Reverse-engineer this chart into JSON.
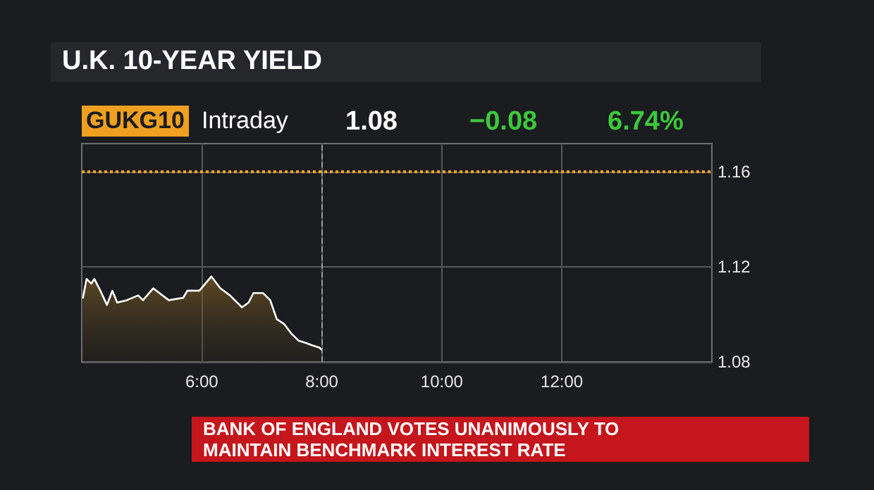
{
  "chart_data": {
    "type": "area",
    "title": "U.K. 10-YEAR YIELD",
    "annotations": [
      "GUKG10",
      "Intraday",
      "1.08",
      "−0.08",
      "6.74%",
      "BANK OF ENGLAND VOTES UNANIMOUSLY TO MAINTAIN BENCHMARK INTEREST RATE"
    ],
    "x": [
      4.02,
      4.08,
      4.16,
      4.21,
      4.31,
      4.42,
      4.51,
      4.59,
      4.75,
      4.94,
      5.02,
      5.19,
      5.45,
      5.69,
      5.76,
      5.96,
      6.16,
      6.31,
      6.47,
      6.67,
      6.78,
      6.86,
      7.02,
      7.14,
      7.25,
      7.37,
      7.49,
      7.61,
      7.73,
      7.84,
      7.96,
      8.0
    ],
    "series": [
      {
        "color": "#ffffff",
        "values": [
          1.107,
          1.115,
          1.113,
          1.115,
          1.11,
          1.104,
          1.11,
          1.105,
          1.106,
          1.108,
          1.106,
          1.111,
          1.106,
          1.107,
          1.11,
          1.11,
          1.116,
          1.111,
          1.108,
          1.103,
          1.105,
          1.109,
          1.109,
          1.106,
          1.098,
          1.096,
          1.092,
          1.089,
          1.088,
          1.087,
          1.086,
          1.085
        ]
      }
    ],
    "xlim": [
      4,
      14.5
    ],
    "xticks": [
      {
        "value": 6,
        "label": "6:00"
      },
      {
        "value": 8,
        "label": "8:00"
      },
      {
        "value": 10,
        "label": "10:00"
      },
      {
        "value": 12,
        "label": "12:00"
      }
    ],
    "ylim": [
      1.08,
      1.172
    ],
    "yticks": [
      1.08,
      1.12,
      1.16
    ],
    "ref_lines": [
      {
        "axis": "y",
        "value": 1.16,
        "color": "#f5a623",
        "line_style": "dotted"
      },
      {
        "axis": "x",
        "value": 8,
        "color": "#9a9a9a",
        "line_style": "dashed"
      }
    ],
    "grid": true,
    "marker": "none",
    "line_style": "solid"
  }
}
